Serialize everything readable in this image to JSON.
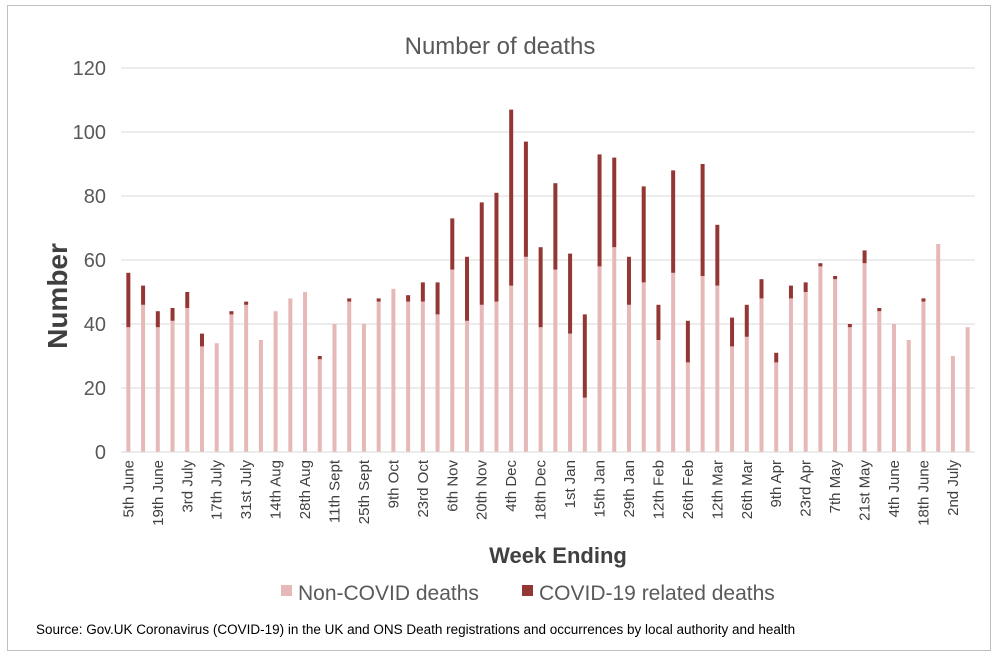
{
  "chart_data": {
    "type": "bar",
    "stacked": true,
    "title": "Number of deaths",
    "xlabel": "Week Ending",
    "ylabel": "Number",
    "ylim": [
      0,
      120
    ],
    "yticks": [
      0,
      20,
      40,
      60,
      80,
      100,
      120
    ],
    "grid": true,
    "legend_position": "bottom",
    "tick_labels": [
      "5th June",
      "19th June",
      "3rd July",
      "17th July",
      "31st July",
      "14th Aug",
      "28th Aug",
      "11th Sept",
      "25th Sept",
      "9th Oct",
      "23rd Oct",
      "6th Nov",
      "20th Nov",
      "4th Dec",
      "18th Dec",
      "1st Jan",
      "15th Jan",
      "29th Jan",
      "12th Feb",
      "26th Feb",
      "12th Mar",
      "26th Mar",
      "9th Apr",
      "23rd Apr",
      "7th May",
      "21st May",
      "4th June",
      "18th June",
      "2nd July"
    ],
    "series": [
      {
        "name": "Non-COVID deaths",
        "color": "#e6b8b7",
        "values": [
          39,
          46,
          39,
          41,
          45,
          33,
          34,
          43,
          46,
          35,
          44,
          48,
          50,
          29,
          40,
          47,
          40,
          47,
          51,
          47,
          47,
          43,
          57,
          41,
          46,
          47,
          52,
          61,
          39,
          57,
          37,
          17,
          58,
          64,
          46,
          53,
          35,
          56,
          28,
          55,
          52,
          33,
          36,
          48,
          28,
          48,
          50,
          58,
          54,
          39,
          59,
          44,
          40,
          35,
          47,
          65,
          30,
          39
        ]
      },
      {
        "name": "COVID-19 related deaths",
        "color": "#943634",
        "values": [
          17,
          6,
          5,
          4,
          5,
          4,
          0,
          1,
          1,
          0,
          0,
          0,
          0,
          1,
          0,
          1,
          0,
          1,
          0,
          2,
          6,
          10,
          16,
          20,
          32,
          34,
          55,
          36,
          25,
          27,
          25,
          26,
          35,
          28,
          15,
          30,
          11,
          32,
          13,
          35,
          19,
          9,
          10,
          6,
          3,
          4,
          3,
          1,
          1,
          1,
          4,
          1,
          0,
          0,
          1,
          0,
          0,
          0
        ]
      }
    ],
    "source": "Source: Gov.UK Coronavirus (COVID-19) in the UK and ONS Death registrations and occurrences by local authority and health"
  }
}
